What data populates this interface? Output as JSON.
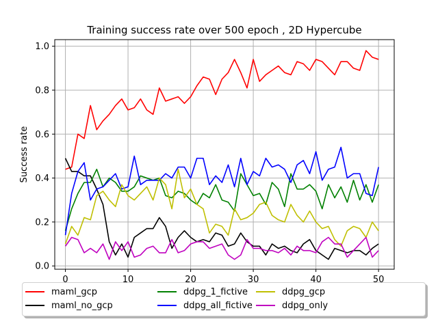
{
  "chart_data": {
    "type": "line",
    "title": "Training success rate over 500 epoch , 2D Hypercube",
    "xlabel": "",
    "ylabel": "Success rate",
    "xlim": [
      -1.7,
      52.5
    ],
    "ylim": [
      -0.015,
      1.03
    ],
    "xticks": [
      0,
      10,
      20,
      30,
      40,
      50
    ],
    "yticks": [
      0.0,
      0.2,
      0.4,
      0.6,
      0.8,
      1.0
    ],
    "xtick_labels": [
      "0",
      "10",
      "20",
      "30",
      "40",
      "50"
    ],
    "ytick_labels": [
      "0.0",
      "0.2",
      "0.4",
      "0.6",
      "0.8",
      "1.0"
    ],
    "grid": true,
    "legend_position": "bottom",
    "x": [
      0,
      1,
      2,
      3,
      4,
      5,
      6,
      7,
      8,
      9,
      10,
      11,
      12,
      13,
      14,
      15,
      16,
      17,
      18,
      19,
      20,
      21,
      22,
      23,
      24,
      25,
      26,
      27,
      28,
      29,
      30,
      31,
      32,
      33,
      34,
      35,
      36,
      37,
      38,
      39,
      40,
      41,
      42,
      43,
      44,
      45,
      46,
      47,
      48,
      49,
      50
    ],
    "series": [
      {
        "name": "maml_gcp",
        "color": "#ff0000",
        "values": [
          0.44,
          0.45,
          0.6,
          0.58,
          0.73,
          0.62,
          0.66,
          0.69,
          0.73,
          0.76,
          0.71,
          0.72,
          0.76,
          0.71,
          0.69,
          0.81,
          0.75,
          0.76,
          0.77,
          0.74,
          0.77,
          0.82,
          0.86,
          0.85,
          0.78,
          0.85,
          0.88,
          0.94,
          0.88,
          0.81,
          0.94,
          0.84,
          0.87,
          0.89,
          0.91,
          0.88,
          0.87,
          0.93,
          0.92,
          0.89,
          0.94,
          0.93,
          0.9,
          0.87,
          0.93,
          0.93,
          0.9,
          0.89,
          0.98,
          0.95,
          0.94
        ]
      },
      {
        "name": "maml_no_gcp",
        "color": "#000000",
        "values": [
          0.49,
          0.43,
          0.43,
          0.41,
          0.41,
          0.35,
          0.28,
          0.11,
          0.05,
          0.1,
          0.04,
          0.13,
          0.15,
          0.17,
          0.17,
          0.22,
          0.18,
          0.08,
          0.13,
          0.16,
          0.13,
          0.11,
          0.12,
          0.11,
          0.15,
          0.14,
          0.09,
          0.1,
          0.15,
          0.11,
          0.09,
          0.09,
          0.05,
          0.1,
          0.08,
          0.09,
          0.07,
          0.06,
          0.1,
          0.12,
          0.07,
          0.05,
          0.03,
          0.08,
          0.07,
          0.06,
          0.07,
          0.07,
          0.05,
          0.08,
          0.1
        ]
      },
      {
        "name": "ddpg_1_fictive",
        "color": "#008000",
        "values": [
          0.16,
          0.26,
          0.33,
          0.38,
          0.38,
          0.44,
          0.36,
          0.4,
          0.38,
          0.34,
          0.34,
          0.36,
          0.41,
          0.4,
          0.39,
          0.4,
          0.32,
          0.31,
          0.34,
          0.33,
          0.3,
          0.28,
          0.33,
          0.31,
          0.37,
          0.3,
          0.29,
          0.25,
          0.42,
          0.37,
          0.32,
          0.33,
          0.28,
          0.38,
          0.35,
          0.27,
          0.42,
          0.35,
          0.35,
          0.37,
          0.34,
          0.26,
          0.37,
          0.31,
          0.36,
          0.29,
          0.39,
          0.3,
          0.37,
          0.29,
          0.37
        ]
      },
      {
        "name": "ddpg_all_fictive",
        "color": "#0000ff",
        "values": [
          0.14,
          0.33,
          0.43,
          0.47,
          0.3,
          0.35,
          0.36,
          0.39,
          0.42,
          0.35,
          0.36,
          0.5,
          0.37,
          0.39,
          0.39,
          0.39,
          0.42,
          0.4,
          0.45,
          0.45,
          0.4,
          0.49,
          0.49,
          0.37,
          0.41,
          0.38,
          0.46,
          0.36,
          0.49,
          0.37,
          0.43,
          0.41,
          0.49,
          0.45,
          0.46,
          0.44,
          0.38,
          0.46,
          0.48,
          0.42,
          0.52,
          0.39,
          0.44,
          0.45,
          0.54,
          0.4,
          0.42,
          0.42,
          0.33,
          0.32,
          0.45
        ]
      },
      {
        "name": "ddpg_gcp",
        "color": "#bfbf00",
        "values": [
          0.1,
          0.18,
          0.14,
          0.22,
          0.21,
          0.32,
          0.34,
          0.3,
          0.27,
          0.37,
          0.32,
          0.3,
          0.33,
          0.36,
          0.3,
          0.4,
          0.37,
          0.26,
          0.44,
          0.31,
          0.35,
          0.28,
          0.26,
          0.15,
          0.19,
          0.18,
          0.14,
          0.26,
          0.21,
          0.22,
          0.24,
          0.28,
          0.29,
          0.23,
          0.21,
          0.2,
          0.28,
          0.23,
          0.2,
          0.25,
          0.2,
          0.17,
          0.18,
          0.12,
          0.09,
          0.16,
          0.18,
          0.17,
          0.13,
          0.2,
          0.16
        ]
      },
      {
        "name": "ddpg_only",
        "color": "#bf00bf",
        "values": [
          0.09,
          0.13,
          0.12,
          0.06,
          0.08,
          0.06,
          0.1,
          0.03,
          0.11,
          0.07,
          0.11,
          0.04,
          0.05,
          0.08,
          0.09,
          0.06,
          0.06,
          0.12,
          0.06,
          0.07,
          0.1,
          0.11,
          0.11,
          0.08,
          0.09,
          0.1,
          0.05,
          0.03,
          0.05,
          0.12,
          0.08,
          0.08,
          0.07,
          0.07,
          0.06,
          0.08,
          0.05,
          0.09,
          0.07,
          0.07,
          0.06,
          0.11,
          0.13,
          0.1,
          0.1,
          0.04,
          0.07,
          0.1,
          0.13,
          0.04,
          0.07
        ]
      }
    ]
  }
}
